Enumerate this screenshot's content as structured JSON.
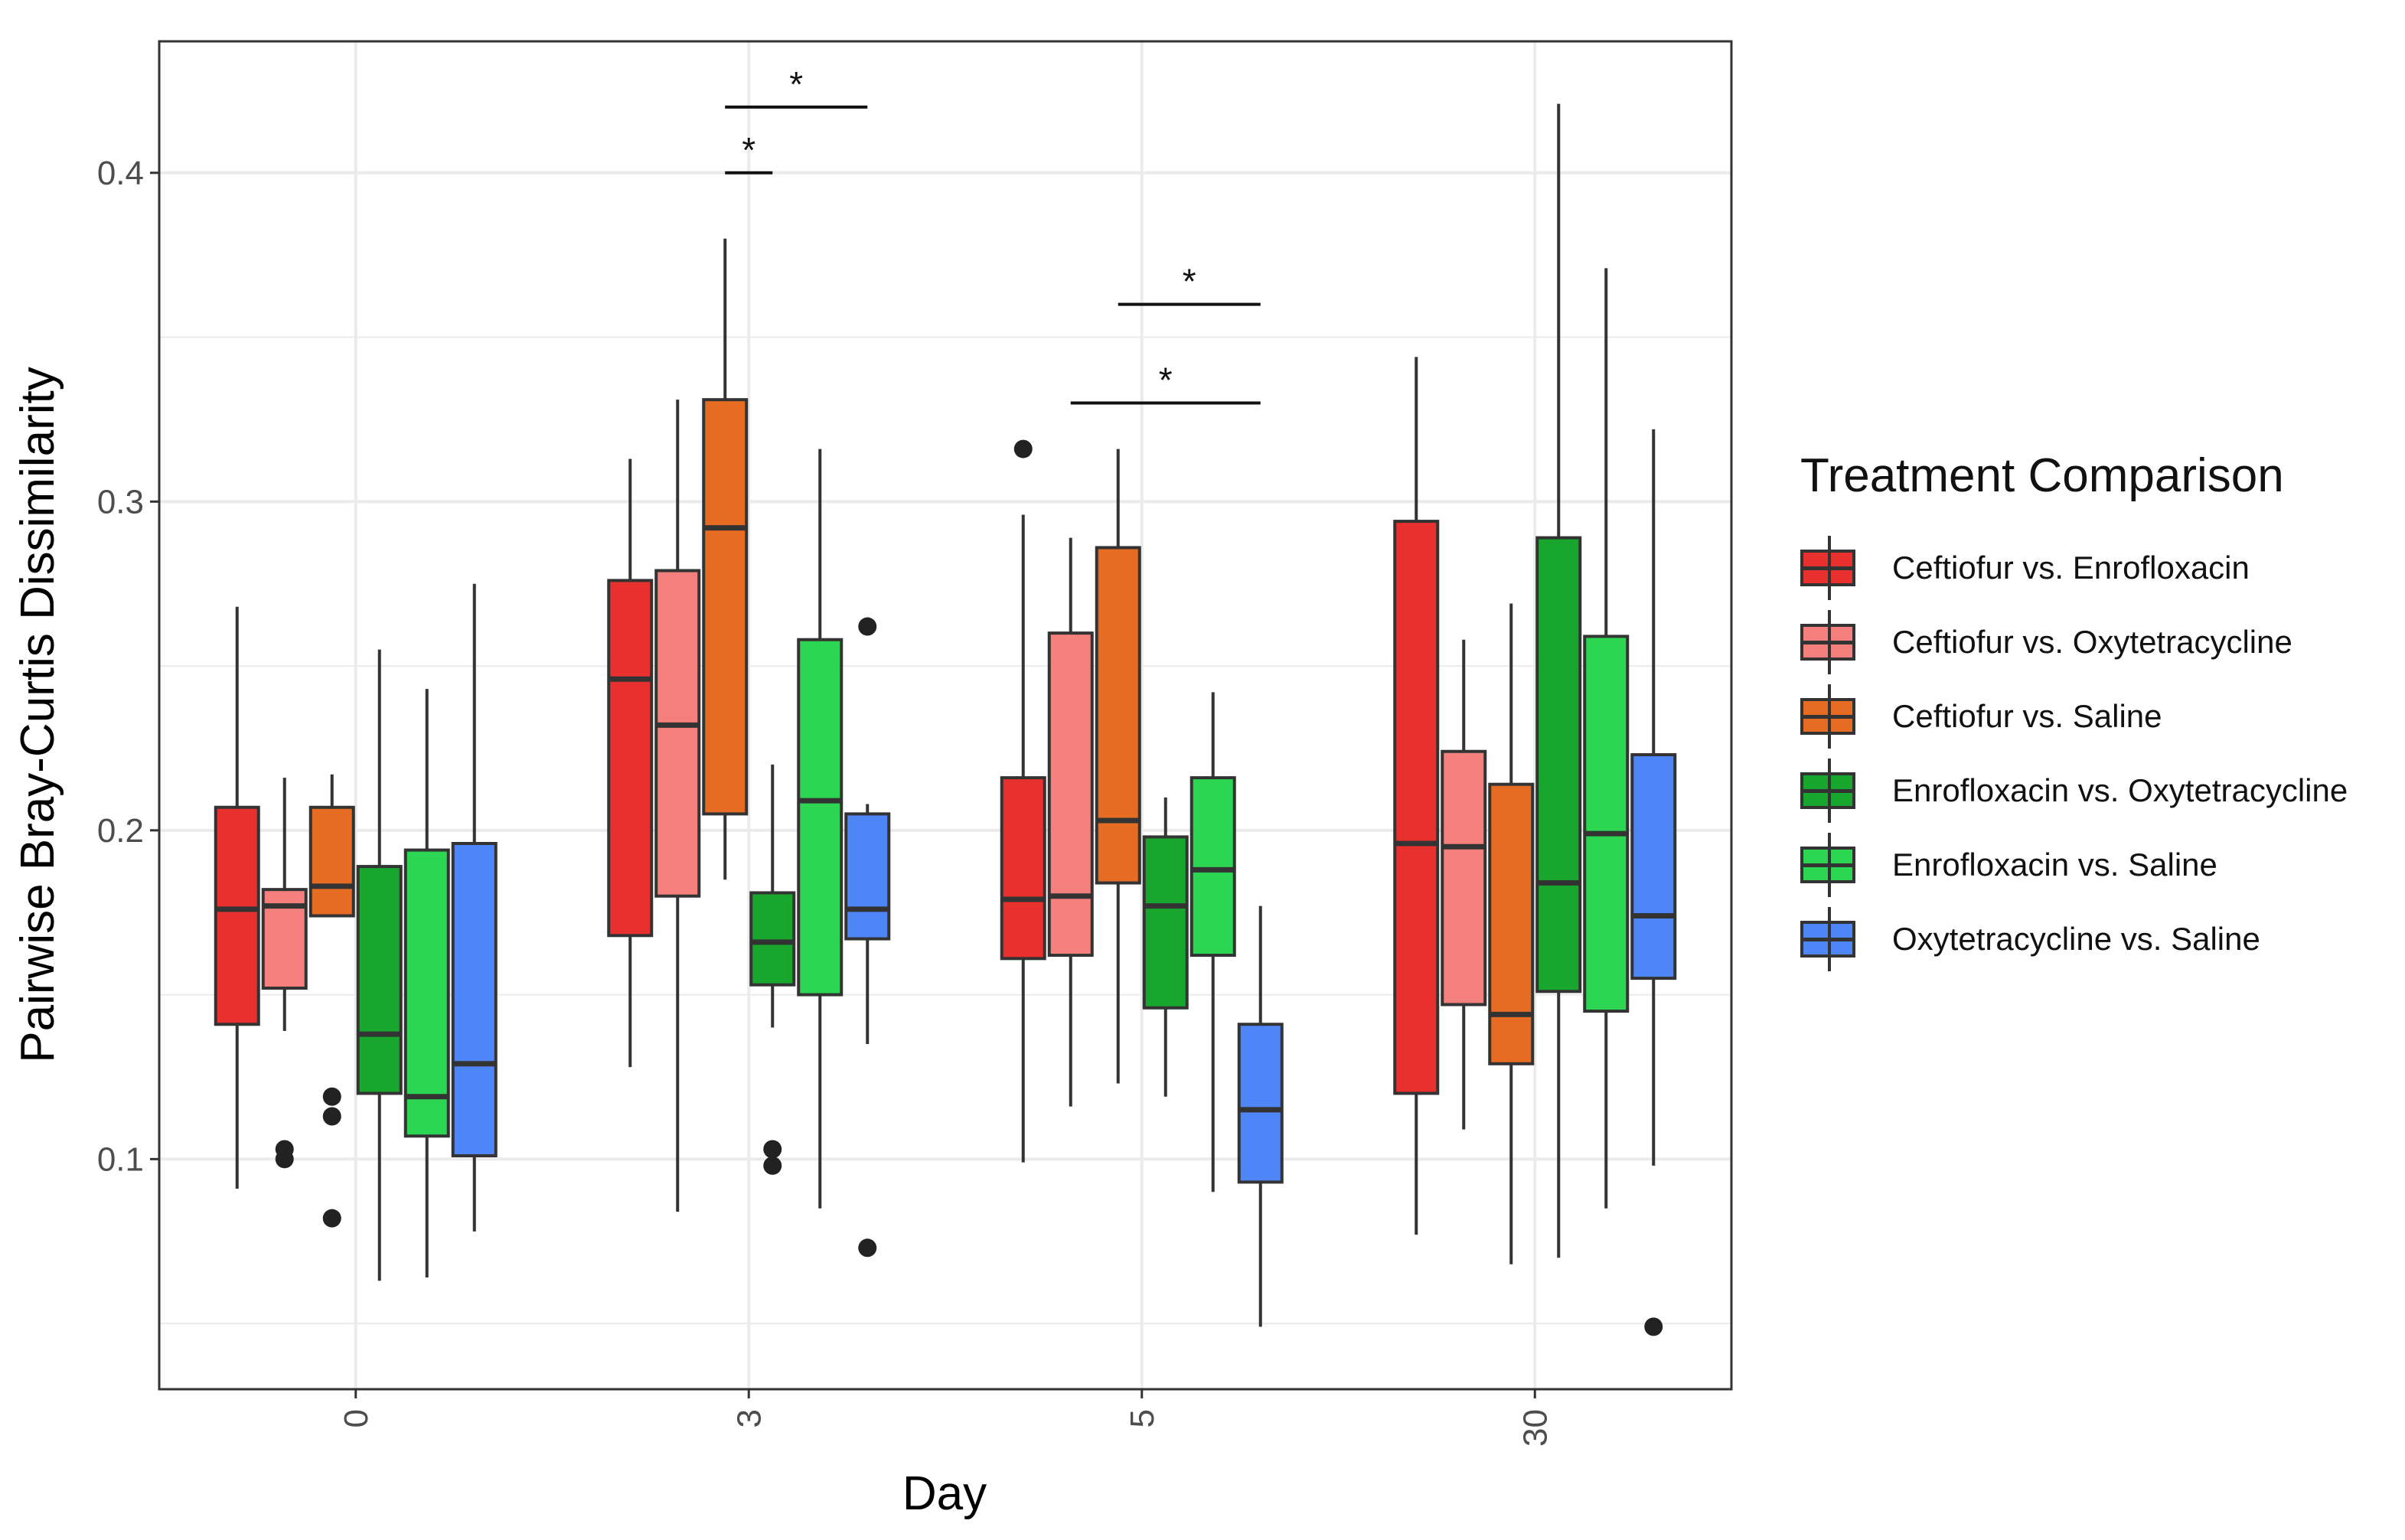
{
  "chart_data": {
    "type": "boxplot",
    "xlabel": "Day",
    "ylabel": "Pairwise Bray-Curtis Dissimilarity",
    "categories": [
      "0",
      "3",
      "5",
      "30"
    ],
    "ylim": [
      0.03,
      0.44
    ],
    "yticks": [
      0.1,
      0.2,
      0.3,
      0.4
    ],
    "ytick_labels": [
      "0.1",
      "0.2",
      "0.3",
      "0.4"
    ],
    "grid": true,
    "legend": {
      "title": "Treatment Comparison",
      "position": "right"
    },
    "series": [
      {
        "name": "Ceftiofur vs. Enrofloxacin",
        "color": "#e8312e",
        "boxes": [
          {
            "min": 0.091,
            "q1": 0.141,
            "median": 0.176,
            "q3": 0.207,
            "max": 0.268,
            "outliers": []
          },
          {
            "min": 0.128,
            "q1": 0.168,
            "median": 0.246,
            "q3": 0.276,
            "max": 0.313,
            "outliers": []
          },
          {
            "min": 0.099,
            "q1": 0.161,
            "median": 0.179,
            "q3": 0.216,
            "max": 0.296,
            "outliers": [
              0.316
            ]
          },
          {
            "min": 0.077,
            "q1": 0.12,
            "median": 0.196,
            "q3": 0.294,
            "max": 0.344,
            "outliers": []
          }
        ]
      },
      {
        "name": "Ceftiofur vs. Oxytetracycline",
        "color": "#f47f7c",
        "boxes": [
          {
            "min": 0.139,
            "q1": 0.152,
            "median": 0.177,
            "q3": 0.182,
            "max": 0.216,
            "outliers": [
              0.103,
              0.1
            ]
          },
          {
            "min": 0.084,
            "q1": 0.18,
            "median": 0.232,
            "q3": 0.279,
            "max": 0.331,
            "outliers": []
          },
          {
            "min": 0.116,
            "q1": 0.162,
            "median": 0.18,
            "q3": 0.26,
            "max": 0.289,
            "outliers": []
          },
          {
            "min": 0.109,
            "q1": 0.147,
            "median": 0.195,
            "q3": 0.224,
            "max": 0.258,
            "outliers": []
          }
        ]
      },
      {
        "name": "Ceftiofur vs. Saline",
        "color": "#e66b23",
        "boxes": [
          {
            "min": 0.174,
            "q1": 0.174,
            "median": 0.183,
            "q3": 0.207,
            "max": 0.217,
            "outliers": [
              0.119,
              0.113,
              0.082
            ]
          },
          {
            "min": 0.185,
            "q1": 0.205,
            "median": 0.292,
            "q3": 0.331,
            "max": 0.38,
            "outliers": []
          },
          {
            "min": 0.123,
            "q1": 0.184,
            "median": 0.203,
            "q3": 0.286,
            "max": 0.316,
            "outliers": []
          },
          {
            "min": 0.068,
            "q1": 0.129,
            "median": 0.144,
            "q3": 0.214,
            "max": 0.269,
            "outliers": []
          }
        ]
      },
      {
        "name": "Enrofloxacin vs. Oxytetracycline",
        "color": "#18a62e",
        "boxes": [
          {
            "min": 0.063,
            "q1": 0.12,
            "median": 0.138,
            "q3": 0.189,
            "max": 0.255,
            "outliers": []
          },
          {
            "min": 0.14,
            "q1": 0.153,
            "median": 0.166,
            "q3": 0.181,
            "max": 0.22,
            "outliers": [
              0.103,
              0.098
            ]
          },
          {
            "min": 0.119,
            "q1": 0.146,
            "median": 0.177,
            "q3": 0.198,
            "max": 0.21,
            "outliers": []
          },
          {
            "min": 0.07,
            "q1": 0.151,
            "median": 0.184,
            "q3": 0.289,
            "max": 0.421,
            "outliers": []
          }
        ]
      },
      {
        "name": "Enrofloxacin vs. Saline",
        "color": "#2dd652",
        "boxes": [
          {
            "min": 0.064,
            "q1": 0.107,
            "median": 0.119,
            "q3": 0.194,
            "max": 0.243,
            "outliers": []
          },
          {
            "min": 0.085,
            "q1": 0.15,
            "median": 0.209,
            "q3": 0.258,
            "max": 0.316,
            "outliers": []
          },
          {
            "min": 0.09,
            "q1": 0.162,
            "median": 0.188,
            "q3": 0.216,
            "max": 0.242,
            "outliers": []
          },
          {
            "min": 0.085,
            "q1": 0.145,
            "median": 0.199,
            "q3": 0.259,
            "max": 0.371,
            "outliers": []
          }
        ]
      },
      {
        "name": "Oxytetracycline vs. Saline",
        "color": "#4f86f7",
        "boxes": [
          {
            "min": 0.078,
            "q1": 0.101,
            "median": 0.129,
            "q3": 0.196,
            "max": 0.275,
            "outliers": []
          },
          {
            "min": 0.135,
            "q1": 0.167,
            "median": 0.176,
            "q3": 0.205,
            "max": 0.208,
            "outliers": [
              0.262,
              0.073
            ]
          },
          {
            "min": 0.049,
            "q1": 0.093,
            "median": 0.115,
            "q3": 0.141,
            "max": 0.177,
            "outliers": []
          },
          {
            "min": 0.098,
            "q1": 0.155,
            "median": 0.174,
            "q3": 0.223,
            "max": 0.322,
            "outliers": [
              0.049
            ]
          }
        ]
      }
    ],
    "annotations": [
      {
        "text": "*",
        "category": "3",
        "from_series": 2,
        "to_series": 3,
        "y": 0.4
      },
      {
        "text": "*",
        "category": "3",
        "from_series": 2,
        "to_series": 5,
        "y": 0.42
      },
      {
        "text": "*",
        "category": "5",
        "from_series": 1,
        "to_series": 5,
        "y": 0.33
      },
      {
        "text": "*",
        "category": "5",
        "from_series": 2,
        "to_series": 5,
        "y": 0.36
      }
    ]
  }
}
